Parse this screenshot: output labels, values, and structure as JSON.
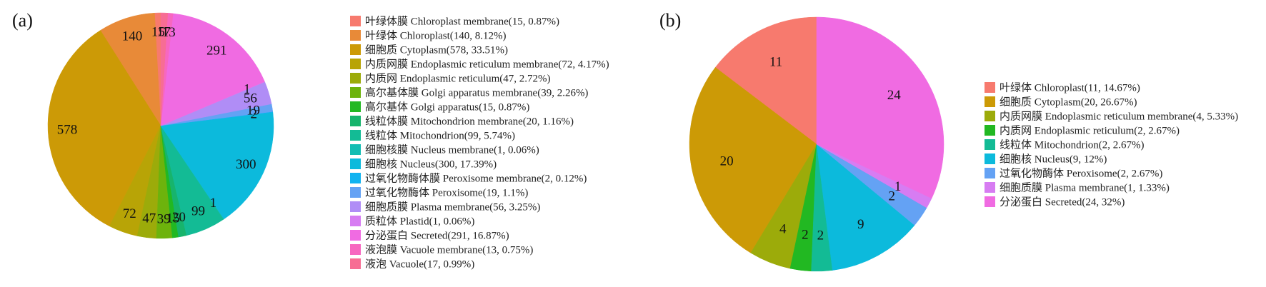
{
  "chart_data": [
    {
      "type": "pie",
      "panel_label": "(a)",
      "title": "",
      "legend_position": "right",
      "slices": [
        {
          "label": "叶绿体膜 Chloroplast membrane(15, 0.87%)",
          "display": "15",
          "value": 15,
          "color": "#F77A6E"
        },
        {
          "label": "叶绿体 Chloroplast(140, 8.12%)",
          "display": "140",
          "value": 140,
          "color": "#E88A38"
        },
        {
          "label": "细胞质 Cytoplasm(578, 33.51%)",
          "display": "578",
          "value": 578,
          "color": "#CC9A06"
        },
        {
          "label": "内质网膜 Endoplasmic reticulum membrane(72, 4.17%)",
          "display": "72",
          "value": 72,
          "color": "#B8A406"
        },
        {
          "label": "内质网 Endoplasmic reticulum(47, 2.72%)",
          "display": "47",
          "value": 47,
          "color": "#9CAB0A"
        },
        {
          "label": "高尔基体膜 Golgi apparatus membrane(39, 2.26%)",
          "display": "39",
          "value": 39,
          "color": "#6DB30C"
        },
        {
          "label": "高尔基体 Golgi apparatus(15, 0.87%)",
          "display": "15",
          "value": 15,
          "color": "#22B822"
        },
        {
          "label": "线粒体膜 Mitochondrion membrane(20, 1.16%)",
          "display": "20",
          "value": 20,
          "color": "#17B46C"
        },
        {
          "label": "线粒体 Mitochondrion(99, 5.74%)",
          "display": "99",
          "value": 99,
          "color": "#13BB95"
        },
        {
          "label": "细胞核膜 Nucleus membrane(1, 0.06%)",
          "display": "1",
          "value": 1,
          "color": "#12BDB3"
        },
        {
          "label": "细胞核 Nucleus(300, 17.39%)",
          "display": "300",
          "value": 300,
          "color": "#0CBADC"
        },
        {
          "label": "过氧化物酶体膜 Peroxisome membrane(2, 0.12%)",
          "display": "2",
          "value": 2,
          "color": "#10B3F0"
        },
        {
          "label": "过氧化物酶体 Peroxisome(19, 1.1%)",
          "display": "19",
          "value": 19,
          "color": "#64A2F4"
        },
        {
          "label": "细胞质膜 Plasma membrane(56, 3.25%)",
          "display": "56",
          "value": 56,
          "color": "#B08DF6"
        },
        {
          "label": "质粒体 Plastid(1, 0.06%)",
          "display": "1",
          "value": 1,
          "color": "#D77CF2"
        },
        {
          "label": "分泌蛋白 Secreted(291, 16.87%)",
          "display": "291",
          "value": 291,
          "color": "#F06BE2"
        },
        {
          "label": "液泡膜 Vacuole membrane(13, 0.75%)",
          "display": "13",
          "value": 13,
          "color": "#F767C0"
        },
        {
          "label": "液泡 Vacuole(17, 0.99%)",
          "display": "17",
          "value": 17,
          "color": "#F76D94"
        }
      ]
    },
    {
      "type": "pie",
      "panel_label": "(b)",
      "title": "",
      "legend_position": "right",
      "slices": [
        {
          "label": "叶绿体 Chloroplast(11, 14.67%)",
          "display": "11",
          "value": 11,
          "color": "#F77A6E"
        },
        {
          "label": "细胞质 Cytoplasm(20, 26.67%)",
          "display": "20",
          "value": 20,
          "color": "#CC9A06"
        },
        {
          "label": "内质网膜 Endoplasmic reticulum membrane(4, 5.33%)",
          "display": "4",
          "value": 4,
          "color": "#9CAB0A"
        },
        {
          "label": "内质网 Endoplasmic reticulum(2, 2.67%)",
          "display": "2",
          "value": 2,
          "color": "#22B822"
        },
        {
          "label": "线粒体 Mitochondrion(2, 2.67%)",
          "display": "2",
          "value": 2,
          "color": "#13BB95"
        },
        {
          "label": "细胞核 Nucleus(9, 12%)",
          "display": "9",
          "value": 9,
          "color": "#0CBADC"
        },
        {
          "label": "过氧化物酶体 Peroxisome(2, 2.67%)",
          "display": "2",
          "value": 2,
          "color": "#64A2F4"
        },
        {
          "label": "细胞质膜 Plasma membrane(1, 1.33%)",
          "display": "1",
          "value": 1,
          "color": "#D77CF2"
        },
        {
          "label": "分泌蛋白 Secreted(24, 32%)",
          "display": "24",
          "value": 24,
          "color": "#F06BE2"
        }
      ]
    }
  ]
}
